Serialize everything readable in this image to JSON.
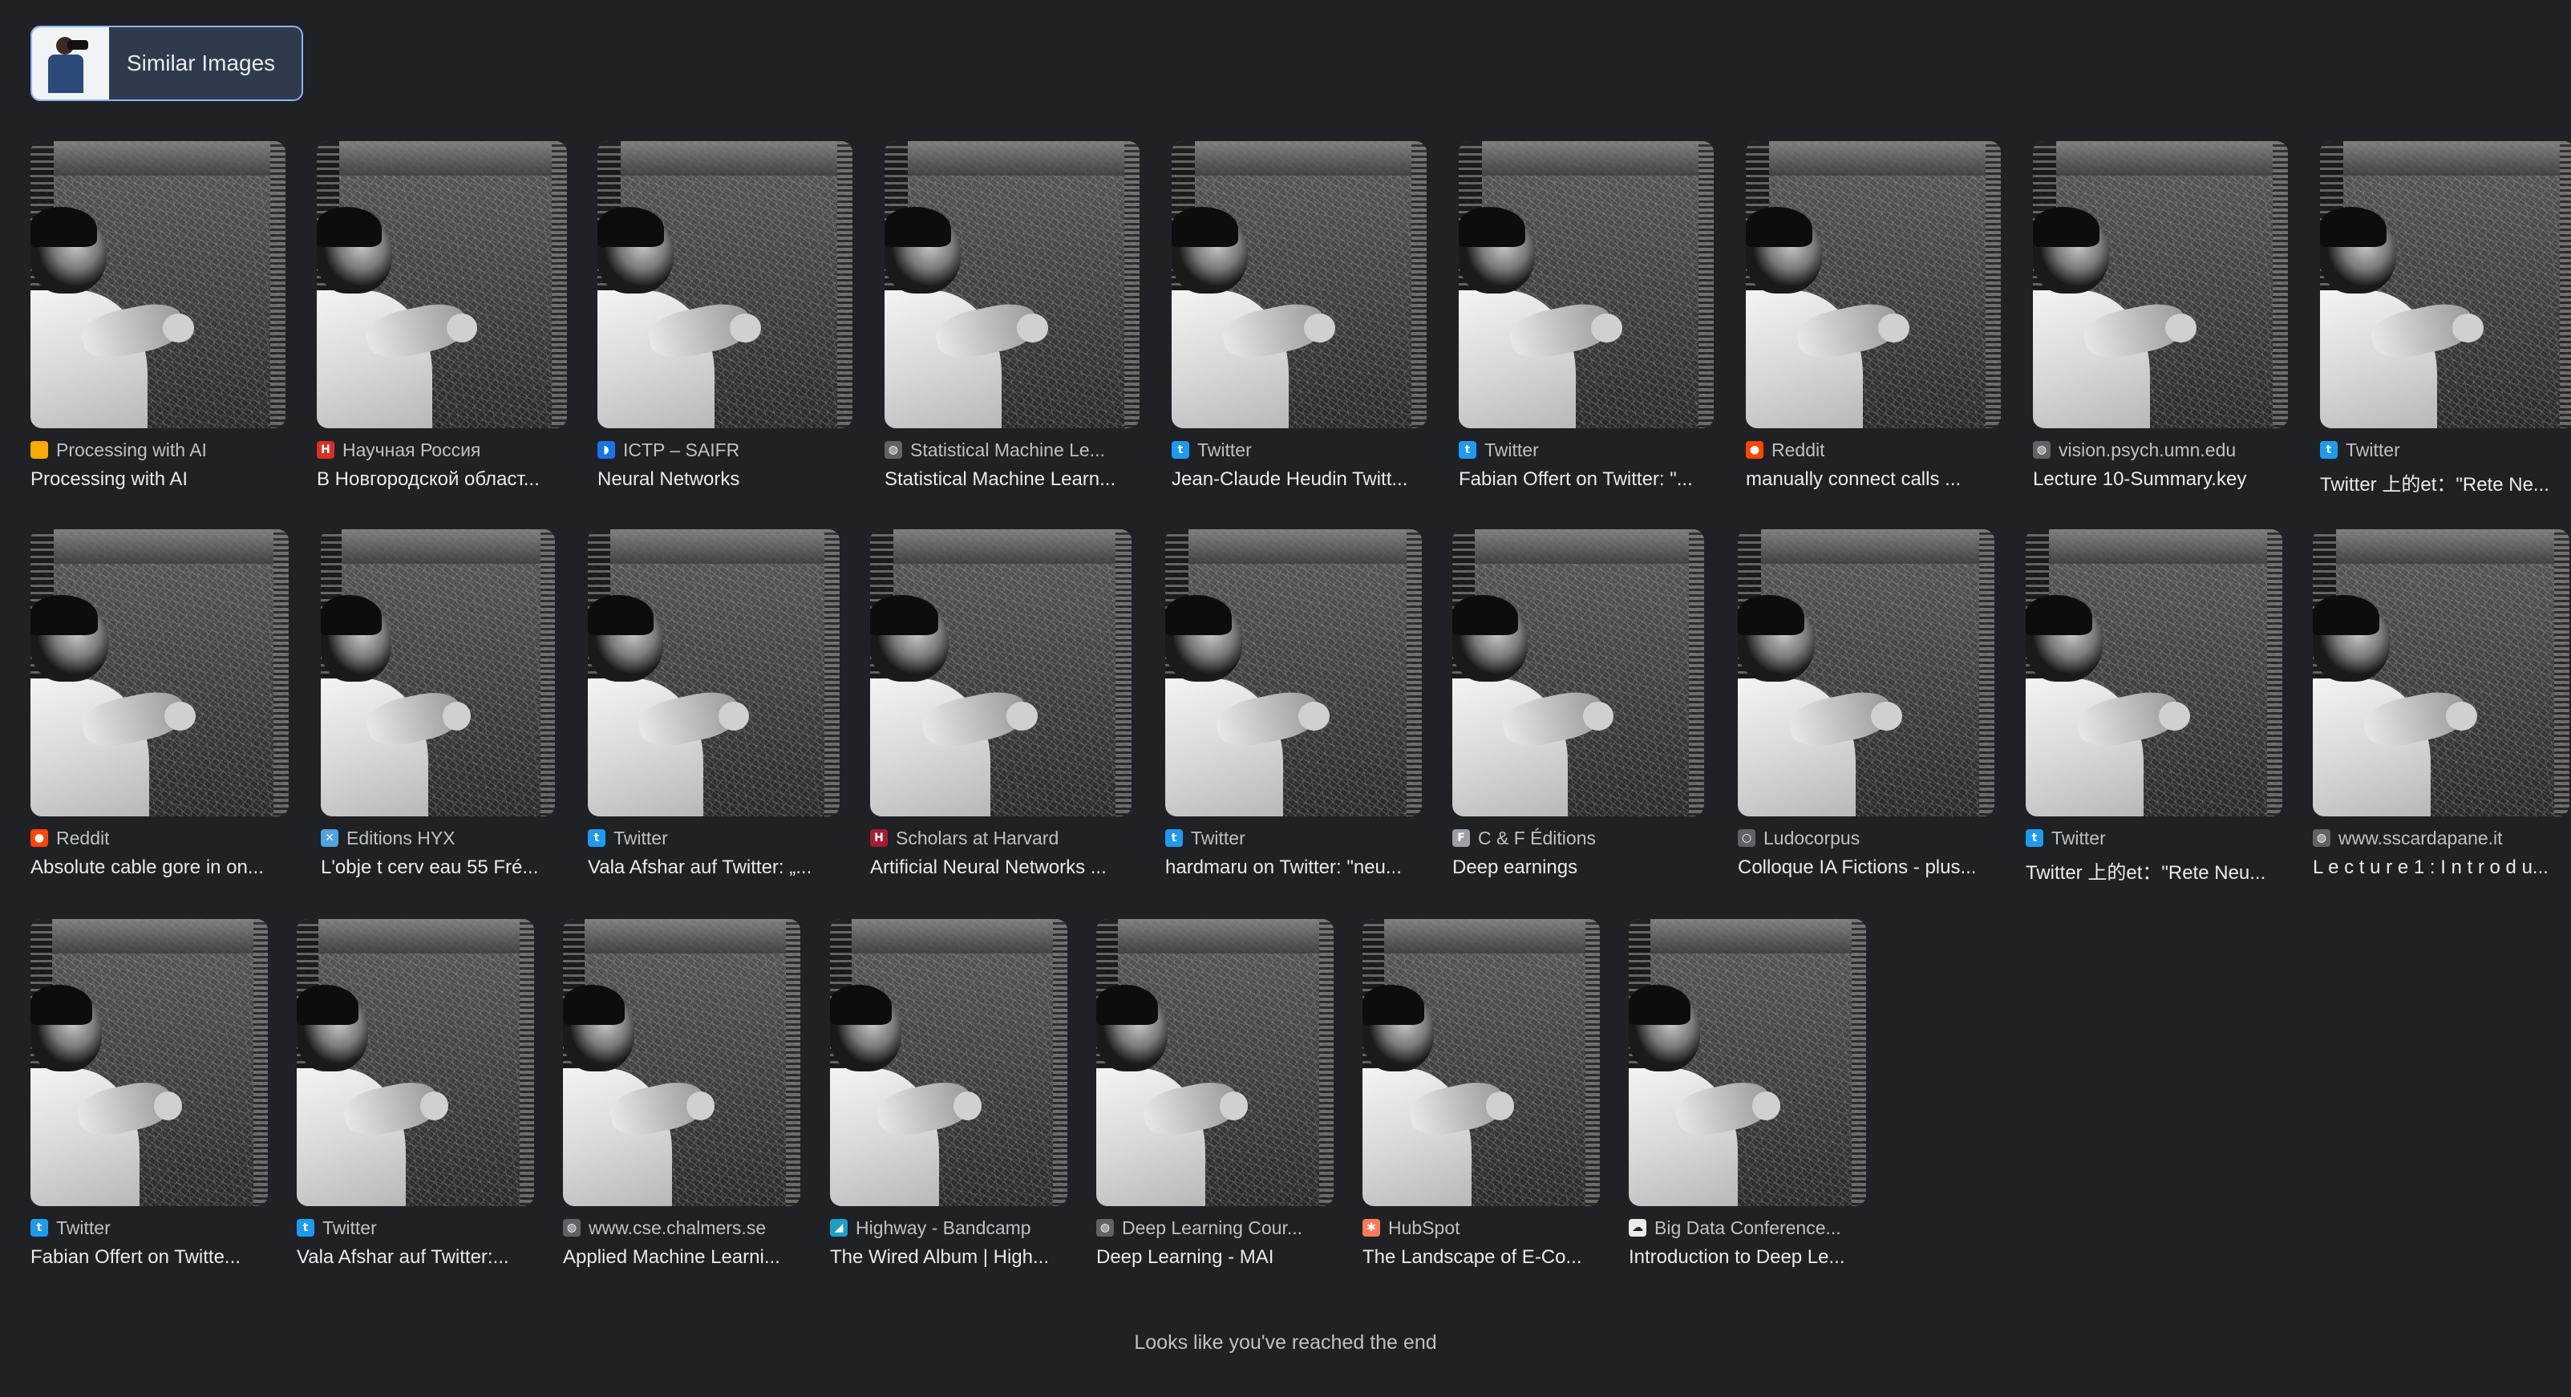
{
  "chip": {
    "label": "Similar Images"
  },
  "rows": [
    [
      {
        "source": "Processing with AI",
        "title": "Processing with AI",
        "icon": "processing-icon",
        "color": "#f9ab00",
        "glyph": ""
      },
      {
        "source": "Научная Россия",
        "title": "В Новгородской област...",
        "icon": "nauchnaya-rossiya-icon",
        "color": "#d93025",
        "glyph": "H"
      },
      {
        "source": "ICTP – SAIFR",
        "title": "Neural Networks",
        "icon": "ictp-icon",
        "color": "#1a73e8",
        "glyph": "◗"
      },
      {
        "source": "Statistical Machine Le...",
        "title": "Statistical Machine Learn...",
        "icon": "globe-icon",
        "color": "#5f6368",
        "glyph": "◍"
      },
      {
        "source": "Twitter",
        "title": "Jean-Claude Heudin Twitt...",
        "icon": "twitter-icon",
        "color": "#1d9bf0",
        "glyph": "t"
      },
      {
        "source": "Twitter",
        "title": "Fabian Offert on Twitter: \"...",
        "icon": "twitter-icon",
        "color": "#1d9bf0",
        "glyph": "t"
      },
      {
        "source": "Reddit",
        "title": "manually connect calls ...",
        "icon": "reddit-icon",
        "color": "#ff4500",
        "glyph": "●"
      },
      {
        "source": "vision.psych.umn.edu",
        "title": "Lecture 10-Summary.key",
        "icon": "globe-icon",
        "color": "#5f6368",
        "glyph": "◍"
      },
      {
        "source": "Twitter",
        "title": "Twitter 上的et：\"Rete Ne...",
        "icon": "twitter-icon",
        "color": "#1d9bf0",
        "glyph": "t"
      }
    ],
    [
      {
        "source": "Reddit",
        "title": "Absolute cable gore in on...",
        "icon": "reddit-icon",
        "color": "#ff4500",
        "glyph": "●"
      },
      {
        "source": "Editions HYX",
        "title": "L'obje t cerv eau 55 Fré...",
        "icon": "editions-hyx-icon",
        "color": "#4fa3e0",
        "glyph": "✕"
      },
      {
        "source": "Twitter",
        "title": "Vala Afshar auf Twitter: „...",
        "icon": "twitter-icon",
        "color": "#1d9bf0",
        "glyph": "t"
      },
      {
        "source": "Scholars at Harvard",
        "title": "Artificial Neural Networks ...",
        "icon": "harvard-icon",
        "color": "#a51c30",
        "glyph": "H"
      },
      {
        "source": "Twitter",
        "title": "hardmaru on Twitter: \"neu...",
        "icon": "twitter-icon",
        "color": "#1d9bf0",
        "glyph": "t"
      },
      {
        "source": "C & F Éditions",
        "title": "Deep earnings",
        "icon": "cf-editions-icon",
        "color": "#9aa0a6",
        "glyph": "F"
      },
      {
        "source": "Ludocorpus",
        "title": "Colloque IA Fictions - plus...",
        "icon": "ludocorpus-icon",
        "color": "#5f6368",
        "glyph": "○"
      },
      {
        "source": "Twitter",
        "title": "Twitter 上的et：\"Rete Neu...",
        "icon": "twitter-icon",
        "color": "#1d9bf0",
        "glyph": "t"
      },
      {
        "source": "www.sscardapane.it",
        "title": "L e c t u r e 1 : I n t r o d u...",
        "icon": "globe-icon",
        "color": "#5f6368",
        "glyph": "◍"
      }
    ],
    [
      {
        "source": "Twitter",
        "title": "Fabian Offert on Twitte...",
        "icon": "twitter-icon",
        "color": "#1d9bf0",
        "glyph": "t"
      },
      {
        "source": "Twitter",
        "title": "Vala Afshar auf Twitter:...",
        "icon": "twitter-icon",
        "color": "#1d9bf0",
        "glyph": "t"
      },
      {
        "source": "www.cse.chalmers.se",
        "title": "Applied Machine Learni...",
        "icon": "globe-icon",
        "color": "#5f6368",
        "glyph": "◍"
      },
      {
        "source": "Highway - Bandcamp",
        "title": "The Wired Album | High...",
        "icon": "bandcamp-icon",
        "color": "#1da0c3",
        "glyph": "◢"
      },
      {
        "source": "Deep Learning Cour...",
        "title": "Deep Learning - MAI",
        "icon": "globe-icon",
        "color": "#5f6368",
        "glyph": "◍"
      },
      {
        "source": "HubSpot",
        "title": "The Landscape of E-Co...",
        "icon": "hubspot-icon",
        "color": "#ff7a59",
        "glyph": "✱"
      },
      {
        "source": "Big Data Conference...",
        "title": "Introduction to Deep Le...",
        "icon": "big-data-icon",
        "color": "#e8eaed",
        "glyph": "☁"
      }
    ]
  ],
  "footer": {
    "text": "Looks like you've reached the end"
  }
}
